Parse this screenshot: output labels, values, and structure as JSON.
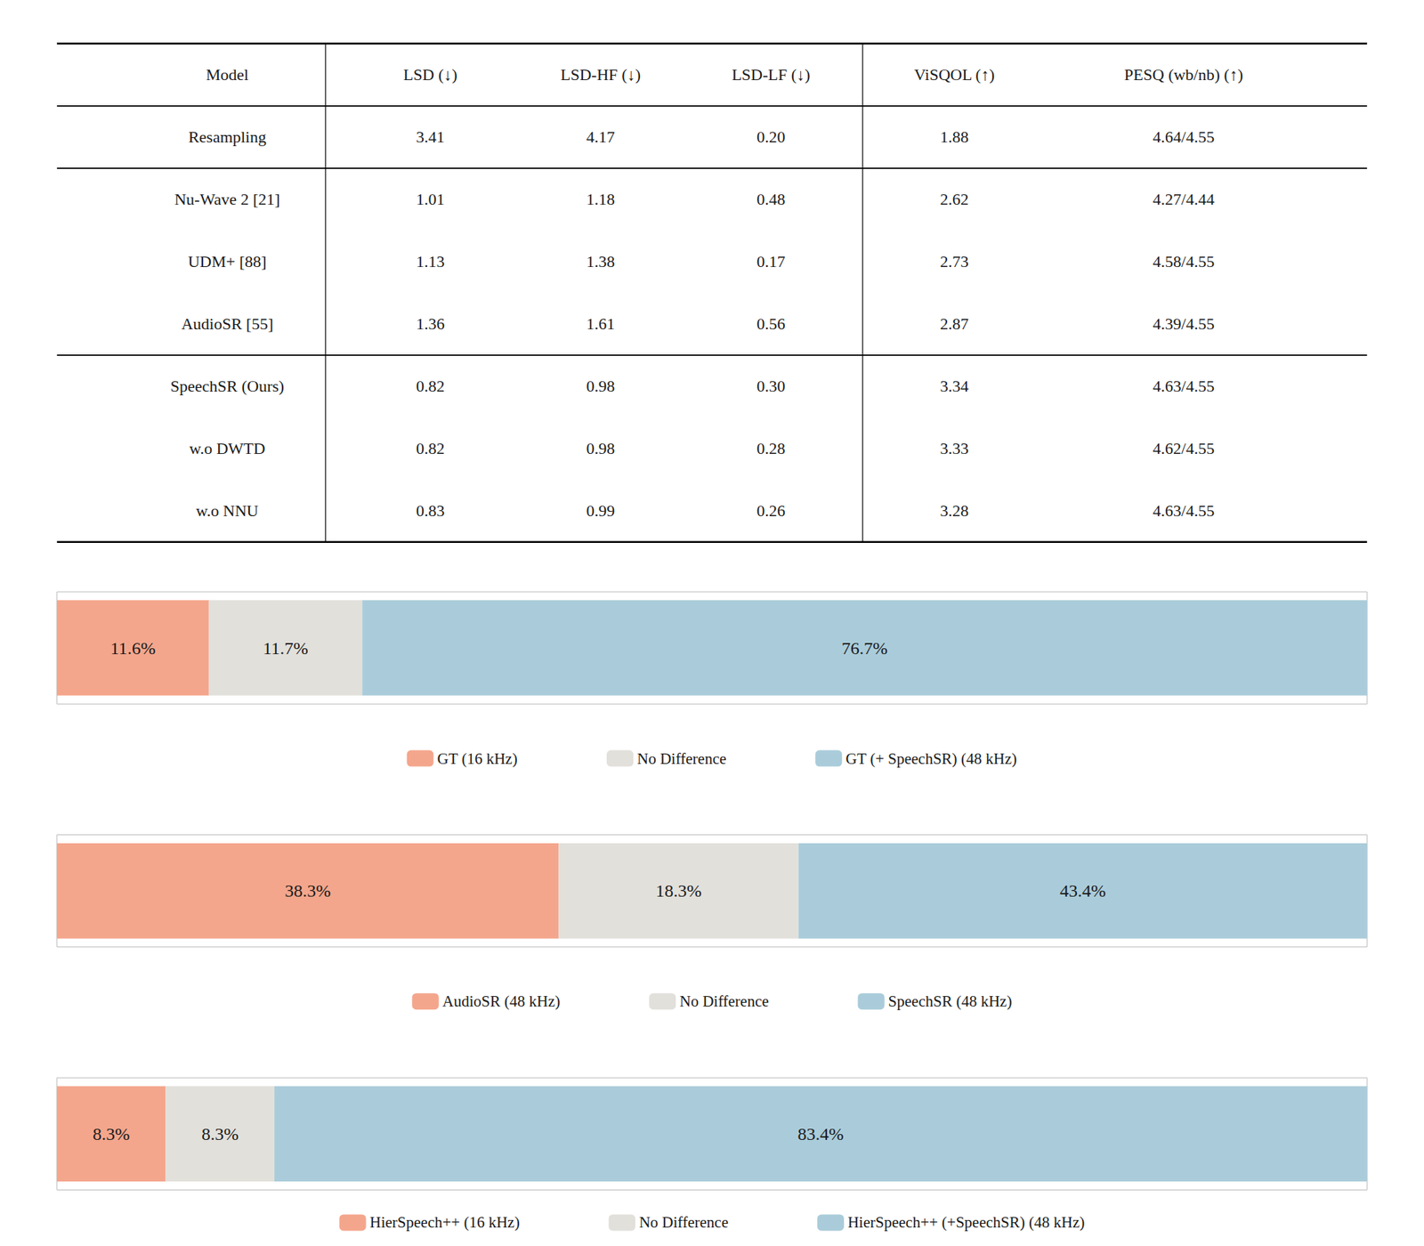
{
  "chart_data": [
    {
      "type": "table",
      "headers": [
        "Model",
        "LSD (↓)",
        "LSD-HF (↓)",
        "LSD-LF (↓)",
        "ViSQOL (↑)",
        "PESQ (wb/nb) (↑)"
      ],
      "rows": [
        [
          "Resampling",
          "3.41",
          "4.17",
          "0.20",
          "1.88",
          "4.64/4.55"
        ],
        [
          "Nu-Wave 2 [21]",
          "1.01",
          "1.18",
          "0.48",
          "2.62",
          "4.27/4.44"
        ],
        [
          "UDM+ [88]",
          "1.13",
          "1.38",
          "0.17",
          "2.73",
          "4.58/4.55"
        ],
        [
          "AudioSR [55]",
          "1.36",
          "1.61",
          "0.56",
          "2.87",
          "4.39/4.55"
        ],
        [
          "SpeechSR (Ours)",
          "0.82",
          "0.98",
          "0.30",
          "3.34",
          "4.63/4.55"
        ],
        [
          "w.o DWTD",
          "0.82",
          "0.98",
          "0.28",
          "3.33",
          "4.62/4.55"
        ],
        [
          "w.o NNU",
          "0.83",
          "0.99",
          "0.26",
          "3.28",
          "4.63/4.55"
        ]
      ]
    },
    {
      "type": "bar",
      "orientation": "horizontal",
      "stacked": true,
      "data_labels": true,
      "tick_labels": false,
      "grid": false,
      "legend": "bottom",
      "categories": [
        null
      ],
      "xlim": [
        0,
        100
      ],
      "xticks": [],
      "series": [
        {
          "name": "GT (16 kHz)",
          "color": "#F4A68C",
          "values": [
            11.6
          ],
          "value_labels": [
            "11.6%"
          ]
        },
        {
          "name": "No Difference",
          "color": "#E2E0DB",
          "values": [
            11.7
          ],
          "value_labels": [
            "11.7%"
          ]
        },
        {
          "name": "GT (+ SpeechSR) (48 kHz)",
          "color": "#AACCDA",
          "values": [
            76.7
          ],
          "value_labels": [
            "76.7%"
          ]
        }
      ]
    },
    {
      "type": "bar",
      "orientation": "horizontal",
      "stacked": true,
      "data_labels": true,
      "tick_labels": false,
      "grid": false,
      "legend": "bottom",
      "categories": [
        null
      ],
      "xlim": [
        0,
        100
      ],
      "xticks": [],
      "series": [
        {
          "name": "AudioSR (48 kHz)",
          "color": "#F4A68C",
          "values": [
            38.3
          ],
          "value_labels": [
            "38.3%"
          ]
        },
        {
          "name": "No Difference",
          "color": "#E2E0DB",
          "values": [
            18.3
          ],
          "value_labels": [
            "18.3%"
          ]
        },
        {
          "name": "SpeechSR (48 kHz)",
          "color": "#AACCDA",
          "values": [
            43.4
          ],
          "value_labels": [
            "43.4%"
          ]
        }
      ]
    },
    {
      "type": "bar",
      "orientation": "horizontal",
      "stacked": true,
      "data_labels": true,
      "tick_labels": false,
      "grid": false,
      "legend": "bottom",
      "categories": [
        null
      ],
      "xlim": [
        0,
        100
      ],
      "xticks": [],
      "series": [
        {
          "name": "HierSpeech++ (16 kHz)",
          "color": "#F4A68C",
          "values": [
            8.3
          ],
          "value_labels": [
            "8.3%"
          ]
        },
        {
          "name": "No Difference",
          "color": "#E2E0DB",
          "values": [
            8.3
          ],
          "value_labels": [
            "8.3%"
          ]
        },
        {
          "name": "HierSpeech++ (+SpeechSR) (48 kHz)",
          "color": "#AACCDA",
          "values": [
            83.4
          ],
          "value_labels": [
            "83.4%"
          ]
        }
      ]
    }
  ]
}
